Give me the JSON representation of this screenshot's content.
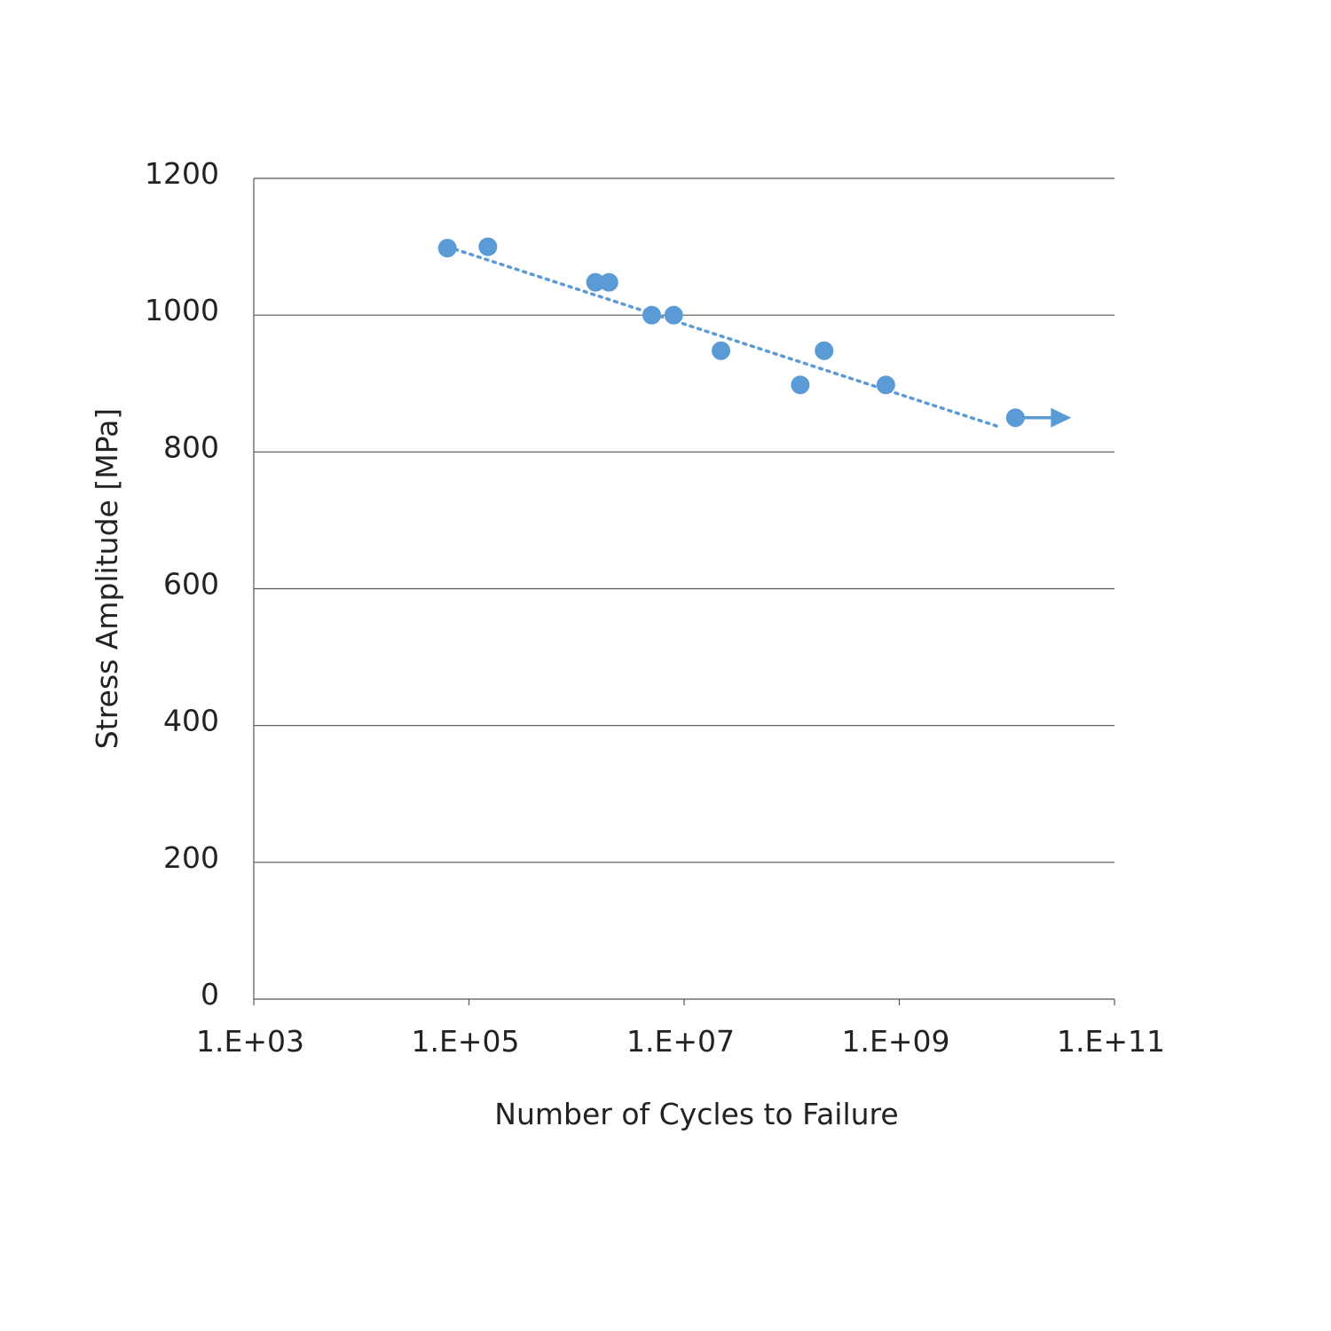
{
  "chart_data": {
    "type": "scatter",
    "title": "",
    "xlabel": "Number of Cycles to Failure",
    "ylabel": "Stress Amplitude [MPa]",
    "x_scale": "log",
    "xlim": [
      1000,
      100000000000
    ],
    "ylim": [
      0,
      1200
    ],
    "x_ticks": [
      {
        "value": 1000,
        "label": "1.E+03"
      },
      {
        "value": 100000,
        "label": "1.E+05"
      },
      {
        "value": 10000000,
        "label": "1.E+07"
      },
      {
        "value": 1000000000,
        "label": "1.E+09"
      },
      {
        "value": 100000000000,
        "label": "1.E+11"
      }
    ],
    "y_ticks": [
      {
        "value": 0,
        "label": "0"
      },
      {
        "value": 200,
        "label": "200"
      },
      {
        "value": 400,
        "label": "400"
      },
      {
        "value": 600,
        "label": "600"
      },
      {
        "value": 800,
        "label": "800"
      },
      {
        "value": 1000,
        "label": "1000"
      },
      {
        "value": 1200,
        "label": "1200"
      }
    ],
    "grid": {
      "horizontal": true,
      "vertical": false
    },
    "legend": "none",
    "color": "#5b9bd5",
    "points": [
      {
        "x": 63000,
        "y": 1098
      },
      {
        "x": 150000,
        "y": 1100
      },
      {
        "x": 1500000,
        "y": 1048
      },
      {
        "x": 2000000,
        "y": 1048
      },
      {
        "x": 5000000,
        "y": 1000
      },
      {
        "x": 8000000,
        "y": 1000
      },
      {
        "x": 22000000,
        "y": 948
      },
      {
        "x": 120000000,
        "y": 898
      },
      {
        "x": 200000000,
        "y": 948
      },
      {
        "x": 750000000,
        "y": 898
      },
      {
        "x": 12000000000,
        "y": 850,
        "runout": true
      }
    ],
    "trendline": {
      "style": "dotted",
      "from": {
        "x": 63000,
        "y": 1100
      },
      "to": {
        "x": 8000000000,
        "y": 838
      }
    }
  }
}
